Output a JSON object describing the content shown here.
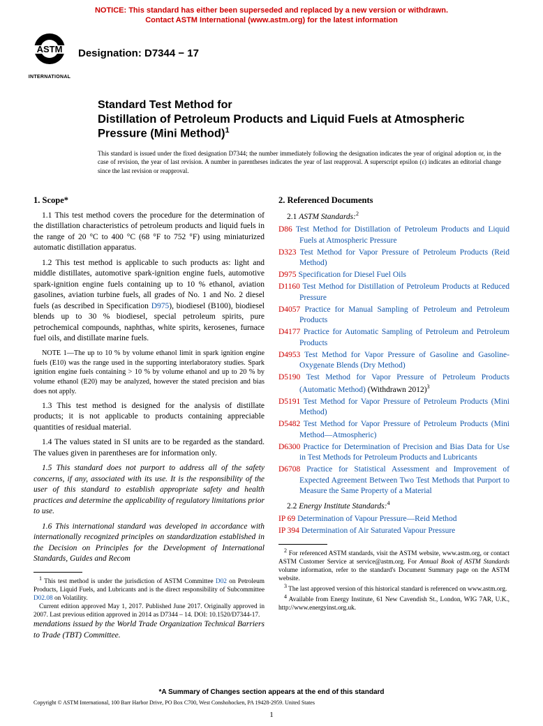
{
  "colors": {
    "notice_red": "#cc0000",
    "link_blue": "#1155aa",
    "text": "#000000",
    "background": "#ffffff"
  },
  "typography": {
    "body_family": "Times New Roman",
    "heading_family": "Arial",
    "body_size_pt": 11.5,
    "heading_title_size_pt": 16.5,
    "section_title_size_pt": 12.5,
    "footnote_size_pt": 9.3,
    "notice_size_pt": 11
  },
  "notice": {
    "line1": "NOTICE: This standard has either been superseded and replaced by a new version or withdrawn.",
    "line2": "Contact ASTM International (www.astm.org) for the latest information"
  },
  "logo_label": "INTERNATIONAL",
  "designation": "Designation: D7344 − 17",
  "title": {
    "prefix": "Standard Test Method for",
    "main": "Distillation of Petroleum Products and Liquid Fuels at Atmospheric Pressure (Mini Method)",
    "sup": "1"
  },
  "issuance": "This standard is issued under the fixed designation D7344; the number immediately following the designation indicates the year of original adoption or, in the case of revision, the year of last revision. A number in parentheses indicates the year of last reapproval. A superscript epsilon (ε) indicates an editorial change since the last revision or reapproval.",
  "section1": {
    "title": "1. Scope*",
    "p11": "1.1 This test method covers the procedure for the determination of the distillation characteristics of petroleum products and liquid fuels in the range of 20 °C to 400 °C (68 °F to 752 °F) using miniaturized automatic distillation apparatus.",
    "p12_pre": "1.2 This test method is applicable to such products as: light and middle distillates, automotive spark-ignition engine fuels, automotive spark-ignition engine fuels containing up to 10 % ethanol, aviation gasolines, aviation turbine fuels, all grades of No. 1 and No. 2 diesel fuels (as described in Specification ",
    "p12_link": "D975",
    "p12_post": "), biodiesel (B100), biodiesel blends up to 30 % biodiesel, special petroleum spirits, pure petrochemical compounds, naphthas, white spirits, kerosenes, furnace fuel oils, and distillate marine fuels.",
    "note1": "NOTE 1—The up to 10 % by volume ethanol limit in spark ignition engine fuels (E10) was the range used in the supporting interlaboratory studies. Spark ignition engine fuels containing > 10 % by volume ethanol and up to 20 % by volume ethanol (E20) may be analyzed, however the stated precision and bias does not apply.",
    "p13": "1.3 This test method is designed for the analysis of distillate products; it is not applicable to products containing appreciable quantities of residual material.",
    "p14": "1.4 The values stated in SI units are to be regarded as the standard. The values given in parentheses are for information only.",
    "p15": "1.5 This standard does not purport to address all of the safety concerns, if any, associated with its use. It is the responsibility of the user of this standard to establish appropriate safety and health practices and determine the applicability of regulatory limitations prior to use.",
    "p16": "1.6 This international standard was developed in accordance with internationally recognized principles on standardization established in the Decision on Principles for the Development of International Standards, Guides and Recom",
    "p16_cont": "mendations issued by the World Trade Organization Technical Barriers to Trade (TBT) Committee."
  },
  "fn_left": {
    "f1_a": "This test method is under the jurisdiction of ASTM Committee ",
    "f1_link1": "D02",
    "f1_b": " on Petroleum Products, Liquid Fuels, and Lubricants and is the direct responsibility of Subcommittee ",
    "f1_link2": "D02.08",
    "f1_c": " on Volatility.",
    "f1_d": "Current edition approved May 1, 2017. Published June 2017. Originally approved in 2007. Last previous edition approved in 2014 as D7344 – 14. DOI: 10.1520/D7344-17."
  },
  "section2": {
    "title": "2. Referenced Documents",
    "sub1": "2.1 ",
    "sub1_name": "ASTM Standards:",
    "sub1_sup": "2",
    "refs": [
      {
        "code": "D86",
        "title": "Test Method for Distillation of Petroleum Products and Liquid Fuels at Atmospheric Pressure"
      },
      {
        "code": "D323",
        "title": "Test Method for Vapor Pressure of Petroleum Products (Reid Method)"
      },
      {
        "code": "D975",
        "title": "Specification for Diesel Fuel Oils"
      },
      {
        "code": "D1160",
        "title": "Test Method for Distillation of Petroleum Products at Reduced Pressure"
      },
      {
        "code": "D4057",
        "title": "Practice for Manual Sampling of Petroleum and Petroleum Products"
      },
      {
        "code": "D4177",
        "title": "Practice for Automatic Sampling of Petroleum and Petroleum Products"
      },
      {
        "code": "D4953",
        "title": "Test Method for Vapor Pressure of Gasoline and Gasoline-Oxygenate Blends (Dry Method)"
      },
      {
        "code": "D5190",
        "title": "Test Method for Vapor Pressure of Petroleum Products (Automatic Method)",
        "withdrawn": " (Withdrawn 2012)",
        "sup": "3"
      },
      {
        "code": "D5191",
        "title": "Test Method for Vapor Pressure of Petroleum Products (Mini Method)"
      },
      {
        "code": "D5482",
        "title": "Test Method for Vapor Pressure of Petroleum Products (Mini Method—Atmospheric)"
      },
      {
        "code": "D6300",
        "title": "Practice for Determination of Precision and Bias Data for Use in Test Methods for Petroleum Products and Lubricants"
      },
      {
        "code": "D6708",
        "title": "Practice for Statistical Assessment and Improvement of Expected Agreement Between Two Test Methods that Purport to Measure the Same Property of a Material"
      }
    ],
    "sub2": "2.2 ",
    "sub2_name": "Energy Institute Standards:",
    "sub2_sup": "4",
    "refs2": [
      {
        "code": "IP 69",
        "title": "Determination of Vapour Pressure—Reid Method"
      },
      {
        "code": "IP 394",
        "title": "Determination of Air Saturated Vapour Pressure"
      }
    ]
  },
  "fn_right": {
    "f2_a": "For referenced ASTM standards, visit the ASTM website, www.astm.org, or contact ASTM Customer Service at service@astm.org. For ",
    "f2_i": "Annual Book of ASTM Standards",
    "f2_b": " volume information, refer to the standard's Document Summary page on the ASTM website.",
    "f3": "The last approved version of this historical standard is referenced on www.astm.org.",
    "f4": "Available from Energy Institute, 61 New Cavendish St., London, WIG 7AR, U.K., http://www.energyinst.org.uk."
  },
  "bottom": {
    "summary": "*A Summary of Changes section appears at the end of this standard",
    "copyright": "Copyright © ASTM International, 100 Barr Harbor Drive, PO Box C700, West Conshohocken, PA 19428-2959. United States",
    "page": "1"
  }
}
